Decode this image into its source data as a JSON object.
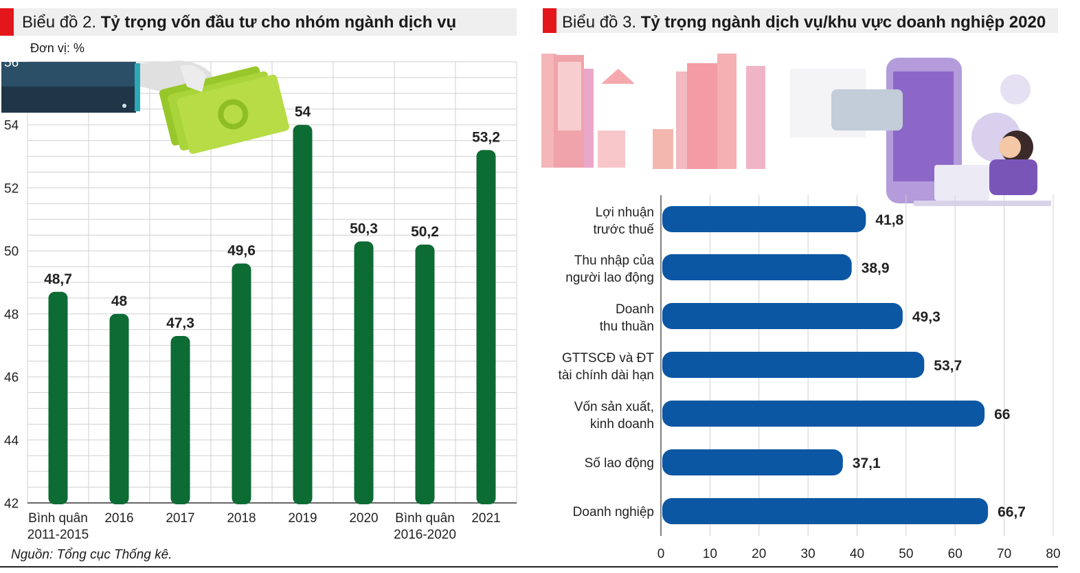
{
  "chart2": {
    "title_prefix": "Biểu đồ 2. ",
    "title_bold": "Tỷ trọng vốn đầu tư cho nhóm ngành dịch vụ",
    "unit": "Đơn vị: %",
    "source": "Nguồn: Tổng cục Thống kê.",
    "colors": {
      "bar": "#0d6b34",
      "grid": "#cfcfcf"
    }
  },
  "chart3": {
    "title_prefix": "Biểu đồ 3. ",
    "title_bold": "Tỷ trọng ngành dịch vụ/khu vực doanh nghiệp 2020",
    "colors": {
      "bar": "#0b57a4",
      "grid": "#cfcfcf"
    }
  },
  "chart_data": [
    {
      "type": "bar",
      "title": "Tỷ trọng vốn đầu tư cho nhóm ngành dịch vụ",
      "ylabel": "Đơn vị: %",
      "categories": [
        "Bình quân\n2011-2015",
        "2016",
        "2017",
        "2018",
        "2019",
        "2020",
        "Bình quân\n2016-2020",
        "2021"
      ],
      "values": [
        48.7,
        48,
        47.3,
        49.6,
        54,
        50.3,
        50.2,
        53.2
      ],
      "value_labels": [
        "48,7",
        "48",
        "47,3",
        "49,6",
        "54",
        "50,3",
        "50,2",
        "53,2"
      ],
      "yticks": [
        "42",
        "44",
        "46",
        "48",
        "50",
        "52",
        "54",
        "56"
      ],
      "ylim": [
        42,
        56
      ],
      "grid": true
    },
    {
      "type": "bar",
      "orientation": "horizontal",
      "title": "Tỷ trọng ngành dịch vụ/khu vực doanh nghiệp 2020",
      "categories": [
        "Lợi nhuận\ntrước thuế",
        "Thu nhập của\nngười lao động",
        "Doanh\nthu thuần",
        "GTTSCĐ và ĐT\ntài chính dài hạn",
        "Vốn sản xuất,\nkinh doanh",
        "Số lao động",
        "Doanh nghiệp"
      ],
      "values": [
        41.8,
        38.9,
        49.3,
        53.7,
        66,
        37.1,
        66.7
      ],
      "value_labels": [
        "41,8",
        "38,9",
        "49,3",
        "53,7",
        "66",
        "37,1",
        "66,7"
      ],
      "xticks": [
        "0",
        "10",
        "20",
        "30",
        "40",
        "50",
        "60",
        "70",
        "80"
      ],
      "xlim": [
        0,
        80
      ],
      "grid": true
    }
  ]
}
